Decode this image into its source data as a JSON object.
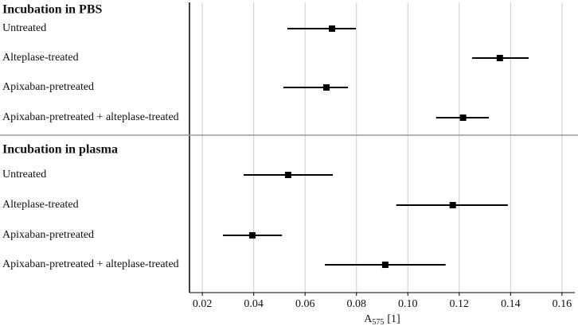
{
  "chart_data": {
    "type": "forest",
    "groups": [
      {
        "title": "Incubation in PBS",
        "categories": [
          "Untreated",
          "Alteplase-treated",
          "Apixaban-pretreated",
          "Apixaban-pretreated + alteplase-treated"
        ],
        "values": [
          0.0705,
          0.1358,
          0.0683,
          0.1215
        ],
        "lower": [
          0.0531,
          0.125,
          0.0516,
          0.111
        ],
        "upper": [
          0.0798,
          0.147,
          0.0767,
          0.1315
        ]
      },
      {
        "title": "Incubation in plasma",
        "categories": [
          "Untreated",
          "Alteplase-treated",
          "Apixaban-pretreated",
          "Apixaban-pretreated + alteplase-treated"
        ],
        "values": [
          0.0534,
          0.1175,
          0.0395,
          0.0912
        ],
        "lower": [
          0.0361,
          0.0955,
          0.028,
          0.0677
        ],
        "upper": [
          0.0708,
          0.1389,
          0.051,
          0.1147
        ]
      }
    ],
    "x_label": [
      "A",
      "575",
      "[1]"
    ],
    "xlim": [
      0.015,
      0.165
    ],
    "xticks": [
      0.02,
      0.04,
      0.06,
      0.08,
      {
        "value": 0.1,
        "label": "0.10"
      },
      0.12,
      0.14,
      0.16
    ],
    "grid": true,
    "color": "#000000"
  }
}
